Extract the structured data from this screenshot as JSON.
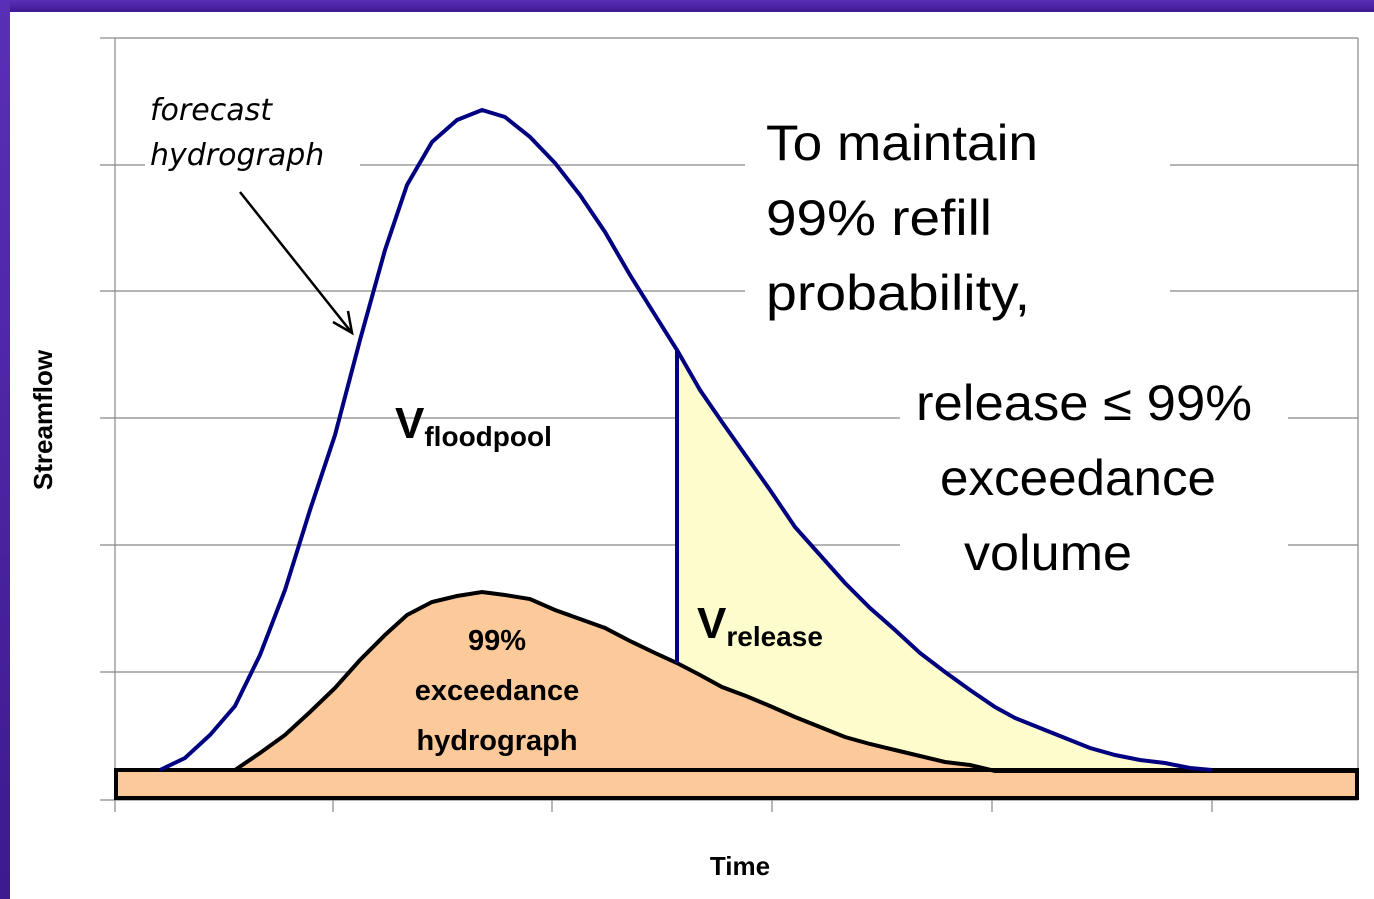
{
  "axes": {
    "y_label": "Streamflow",
    "x_label": "Time"
  },
  "annotations": {
    "forecast": [
      "forecast",
      "hydrograph"
    ],
    "condition": [
      "To maintain",
      "99% refill",
      "probability,"
    ],
    "rule": [
      "release ≤ 99%",
      "exceedance",
      "volume"
    ],
    "floodpool": {
      "main": "V",
      "sub": "floodpool"
    },
    "release": {
      "main": "V",
      "sub": "release"
    },
    "exceedance": [
      "99%",
      "exceedance",
      "hydrograph"
    ]
  }
}
